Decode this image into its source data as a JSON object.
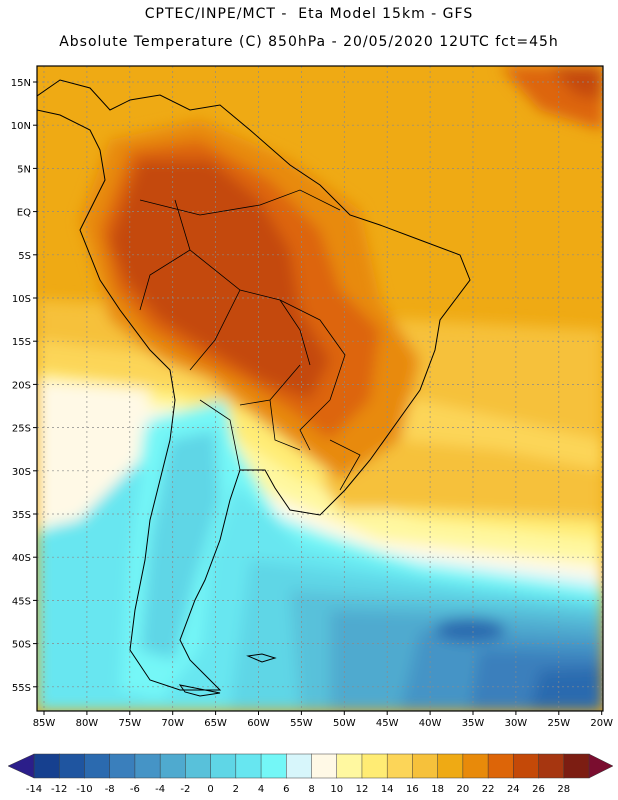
{
  "header": {
    "line1": "CPTEC/INPE/MCT -  Eta Model 15km - GFS",
    "line2": "Absolute Temperature (C) 850hPa - 20/05/2020 12UTC fct=45h"
  },
  "map": {
    "lat_labels": [
      "15N",
      "10N",
      "5N",
      "EQ",
      "5S",
      "10S",
      "15S",
      "20S",
      "25S",
      "30S",
      "35S",
      "40S",
      "45S",
      "50S",
      "55S"
    ],
    "lon_labels": [
      "85W",
      "80W",
      "75W",
      "70W",
      "65W",
      "60W",
      "55W",
      "50W",
      "45W",
      "40W",
      "35W",
      "30W",
      "25W",
      "20W"
    ]
  },
  "colorbar": {
    "labels": [
      "-14",
      "-12",
      "-10",
      "-8",
      "-6",
      "-4",
      "-2",
      "0",
      "2",
      "4",
      "6",
      "8",
      "10",
      "12",
      "14",
      "16",
      "18",
      "20",
      "22",
      "24",
      "26",
      "28"
    ],
    "colors": [
      "#16408f",
      "#1f55a0",
      "#2b6aaf",
      "#3a7fbc",
      "#4594c6",
      "#4faacf",
      "#58c1da",
      "#5fd6e6",
      "#67e6f0",
      "#74f7f7",
      "#d7f6fb",
      "#fff9e6",
      "#fff8a0",
      "#ffec74",
      "#fcd558",
      "#f6c13b",
      "#efaa14",
      "#e88a0a",
      "#dd6508",
      "#c44908",
      "#a63610",
      "#7c1d12"
    ],
    "left_cap_color": "#2b1e8a",
    "right_cap_color": "#7a0d2f"
  }
}
